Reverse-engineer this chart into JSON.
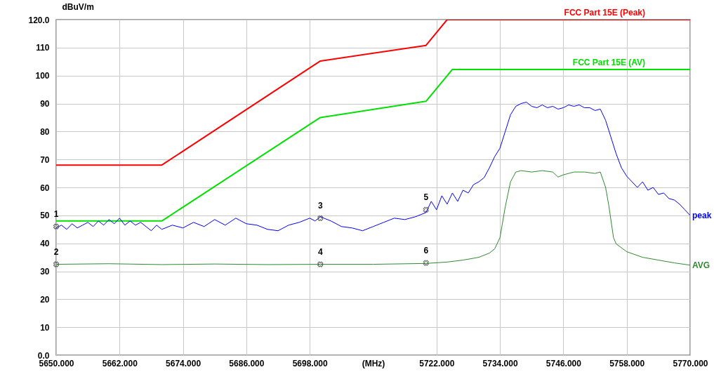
{
  "chart_data": {
    "type": "line",
    "xlabel": "(MHz)",
    "ylabel": "dBuV/m",
    "xlim": [
      5650,
      5770
    ],
    "ylim": [
      0,
      120
    ],
    "xticks": [
      {
        "value": 5650,
        "label": "5650.000"
      },
      {
        "value": 5662,
        "label": "5662.000"
      },
      {
        "value": 5674,
        "label": "5674.000"
      },
      {
        "value": 5686,
        "label": "5686.000"
      },
      {
        "value": 5698,
        "label": "5698.000"
      },
      {
        "value": 5722,
        "label": "5722.000"
      },
      {
        "value": 5734,
        "label": "5734.000"
      },
      {
        "value": 5746,
        "label": "5746.000"
      },
      {
        "value": 5758,
        "label": "5758.000"
      },
      {
        "value": 5770,
        "label": "5770.000"
      }
    ],
    "yticks": [
      {
        "value": 0,
        "label": "0.0"
      },
      10,
      20,
      30,
      40,
      50,
      60,
      70,
      80,
      90,
      100,
      110,
      {
        "value": 120,
        "label": "120.0"
      }
    ],
    "grid": true,
    "series": [
      {
        "name": "FCC Part 15E  (Peak)",
        "color": "#ff0000",
        "x": [
          5650,
          5670,
          5700,
          5720,
          5724,
          5770
        ],
        "values": [
          68,
          68,
          105.2,
          110.8,
          120,
          120
        ]
      },
      {
        "name": "FCC Part 15E  (AV)",
        "color": "#00e000",
        "x": [
          5650,
          5670,
          5700,
          5720,
          5725,
          5770
        ],
        "values": [
          48,
          48,
          85,
          90.8,
          102.2,
          102.2
        ]
      },
      {
        "name": "peak",
        "color": "#0000ff",
        "x": [
          5650,
          5651,
          5652,
          5653,
          5654,
          5655,
          5656,
          5657,
          5658,
          5659,
          5660,
          5661,
          5662,
          5663,
          5664,
          5665,
          5666,
          5667,
          5668,
          5669,
          5670,
          5672,
          5674,
          5676,
          5678,
          5680,
          5682,
          5684,
          5686,
          5688,
          5690,
          5692,
          5694,
          5696,
          5698,
          5699,
          5700,
          5702,
          5704,
          5706,
          5708,
          5710,
          5712,
          5714,
          5716,
          5718,
          5720,
          5721,
          5722,
          5723,
          5724,
          5725,
          5726,
          5727,
          5728,
          5729,
          5730,
          5731,
          5732,
          5733,
          5734,
          5735,
          5736,
          5737,
          5738,
          5739,
          5740,
          5741,
          5742,
          5743,
          5744,
          5745,
          5746,
          5747,
          5748,
          5749,
          5750,
          5751,
          5752,
          5753,
          5754,
          5755,
          5756,
          5757,
          5758,
          5759,
          5760,
          5761,
          5762,
          5763,
          5764,
          5765,
          5766,
          5767,
          5768,
          5769,
          5770
        ],
        "values": [
          45.5,
          46.5,
          45,
          47,
          45.5,
          46.5,
          47.5,
          46,
          48,
          46.5,
          48.5,
          47,
          49,
          46.5,
          48,
          46.5,
          47.5,
          46,
          44.5,
          46.5,
          45,
          46.5,
          45.5,
          47.5,
          46,
          48.5,
          46.5,
          49,
          47,
          46.5,
          45,
          44.5,
          46.5,
          47.5,
          49,
          48,
          49.5,
          48,
          46,
          45.5,
          44.5,
          46,
          47.5,
          49,
          48.5,
          49.5,
          51,
          55,
          52,
          57,
          54,
          58,
          55,
          59,
          58,
          61,
          62,
          63.5,
          67,
          71,
          74,
          80,
          86,
          89,
          90,
          90.5,
          89,
          88.5,
          89.5,
          88.5,
          89,
          88,
          88.5,
          89.5,
          89,
          89.5,
          88.5,
          88.5,
          87.5,
          88,
          84,
          78,
          72,
          67,
          64,
          62,
          60,
          62,
          59,
          60,
          57.5,
          58,
          56,
          55.5,
          54,
          52,
          50
        ]
      },
      {
        "name": "AVG",
        "color": "#2f8a2f",
        "x": [
          5650,
          5660,
          5670,
          5680,
          5690,
          5700,
          5710,
          5720,
          5724,
          5727,
          5730,
          5732,
          5733,
          5734,
          5735,
          5736,
          5737,
          5738,
          5740,
          5742,
          5744,
          5745,
          5746,
          5748,
          5750,
          5752,
          5753,
          5754,
          5754.6,
          5755.5,
          5756,
          5758,
          5761,
          5764,
          5767,
          5770
        ],
        "values": [
          32.5,
          32.7,
          32.4,
          32.6,
          32.4,
          32.5,
          32.5,
          32.8,
          33.3,
          34,
          35,
          36.5,
          38,
          42,
          53,
          62,
          65.5,
          66,
          65.5,
          66,
          65.5,
          63.7,
          64.5,
          65.5,
          65.5,
          65,
          65.5,
          60,
          53.6,
          42,
          39.8,
          37,
          35,
          34,
          33,
          32.2
        ]
      }
    ],
    "annotations": [
      {
        "text": "1",
        "x": 5650,
        "y": 46
      },
      {
        "text": "2",
        "x": 5650,
        "y": 32.5
      },
      {
        "text": "3",
        "x": 5700,
        "y": 49
      },
      {
        "text": "4",
        "x": 5700,
        "y": 32.5
      },
      {
        "text": "5",
        "x": 5720,
        "y": 52
      },
      {
        "text": "6",
        "x": 5720,
        "y": 33
      }
    ]
  }
}
